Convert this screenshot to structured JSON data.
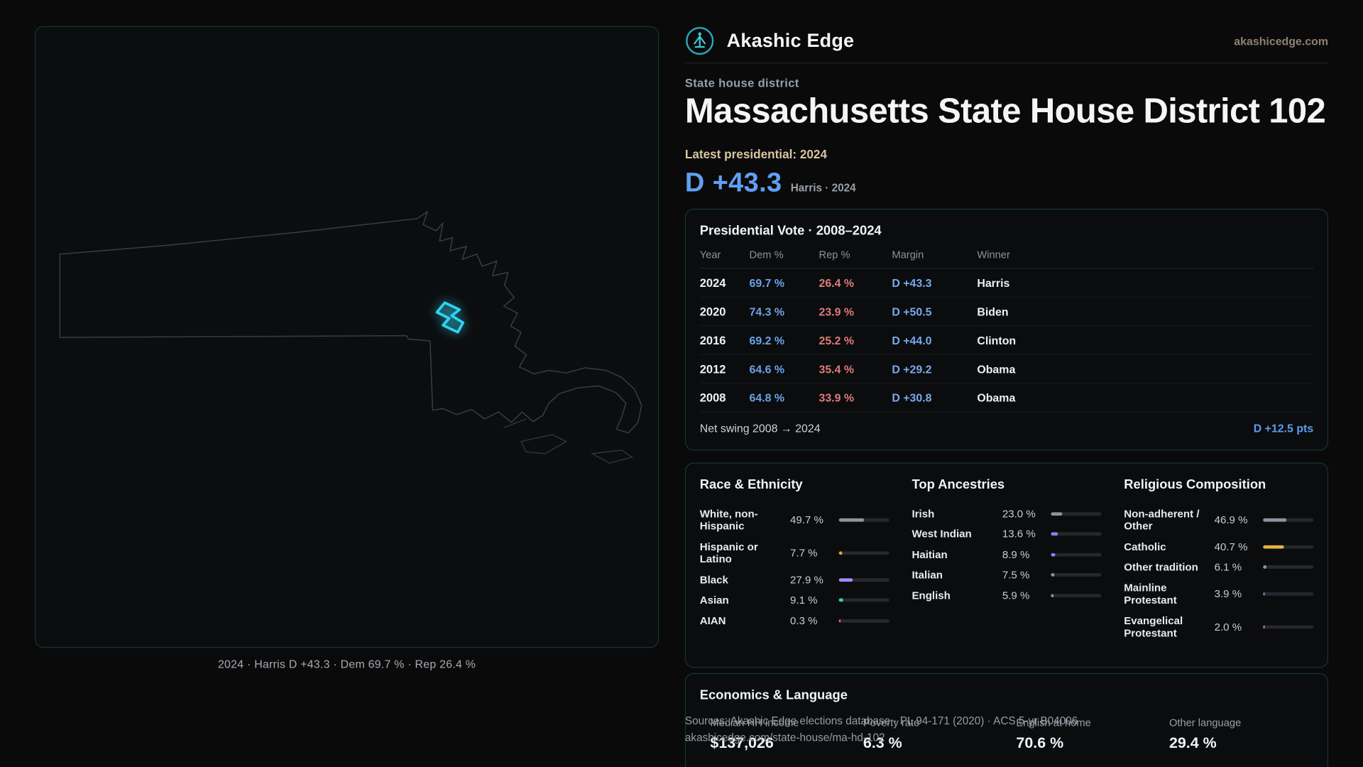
{
  "page": {
    "brand": "Akashic Edge",
    "domain": "akashicedge.com",
    "kicker": "State house district",
    "title": "Massachusetts State House District 102",
    "latest_label": "Latest presidential: 2024",
    "headline_margin": "D +43.3",
    "headline_sub": "Harris · 2024"
  },
  "map": {
    "caption": "2024 · Harris D +43.3 · Dem 69.7 % · Rep 26.4 %"
  },
  "presidential": {
    "title": "Presidential Vote · 2008–2024",
    "columns": [
      "Year",
      "Dem %",
      "Rep %",
      "Margin",
      "Winner"
    ],
    "rows": [
      {
        "year": "2024",
        "dem": "69.7 %",
        "rep": "26.4 %",
        "margin": "D +43.3",
        "winner": "Harris"
      },
      {
        "year": "2020",
        "dem": "74.3 %",
        "rep": "23.9 %",
        "margin": "D +50.5",
        "winner": "Biden"
      },
      {
        "year": "2016",
        "dem": "69.2 %",
        "rep": "25.2 %",
        "margin": "D +44.0",
        "winner": "Clinton"
      },
      {
        "year": "2012",
        "dem": "64.6 %",
        "rep": "35.4 %",
        "margin": "D +29.2",
        "winner": "Obama"
      },
      {
        "year": "2008",
        "dem": "64.8 %",
        "rep": "33.9 %",
        "margin": "D +30.8",
        "winner": "Obama"
      }
    ],
    "net_swing_label": "Net swing 2008 → 2024",
    "net_swing_value": "D +12.5 pts"
  },
  "demographics": {
    "race": {
      "title": "Race & Ethnicity",
      "rows": [
        {
          "label": "White, non-Hispanic",
          "value": "49.7 %",
          "pct": 49.7,
          "color": "#8f949c"
        },
        {
          "label": "Hispanic or Latino",
          "value": "7.7 %",
          "pct": 7.7,
          "color": "#e8a13c"
        },
        {
          "label": "Black",
          "value": "27.9 %",
          "pct": 27.9,
          "color": "#a78bfa"
        },
        {
          "label": "Asian",
          "value": "9.1 %",
          "pct": 9.1,
          "color": "#3ecfae"
        },
        {
          "label": "AIAN",
          "value": "0.3 %",
          "pct": 0.3,
          "color": "#e06c6c"
        }
      ]
    },
    "ancestries": {
      "title": "Top Ancestries",
      "rows": [
        {
          "label": "Irish",
          "value": "23.0 %",
          "pct": 23.0,
          "color": "#8f949c"
        },
        {
          "label": "West Indian",
          "value": "13.6 %",
          "pct": 13.6,
          "color": "#8b7ff0"
        },
        {
          "label": "Haitian",
          "value": "8.9 %",
          "pct": 8.9,
          "color": "#8b7ff0"
        },
        {
          "label": "Italian",
          "value": "7.5 %",
          "pct": 7.5,
          "color": "#8f949c"
        },
        {
          "label": "English",
          "value": "5.9 %",
          "pct": 5.9,
          "color": "#8f949c"
        }
      ]
    },
    "religion": {
      "title": "Religious Composition",
      "rows": [
        {
          "label": "Non-adherent / Other",
          "value": "46.9 %",
          "pct": 46.9,
          "color": "#8f949c"
        },
        {
          "label": "Catholic",
          "value": "40.7 %",
          "pct": 40.7,
          "color": "#e3b341"
        },
        {
          "label": "Other tradition",
          "value": "6.1 %",
          "pct": 6.1,
          "color": "#8f949c"
        },
        {
          "label": "Mainline Protestant",
          "value": "3.9 %",
          "pct": 3.9,
          "color": "#5b8ef0"
        },
        {
          "label": "Evangelical Protestant",
          "value": "2.0 %",
          "pct": 2.0,
          "color": "#d96b6b"
        }
      ]
    }
  },
  "economics": {
    "title": "Economics & Language",
    "stats": [
      {
        "label": "Median HH income",
        "value": "$137,026"
      },
      {
        "label": "Poverty rate",
        "value": "6.3 %"
      },
      {
        "label": "English at home",
        "value": "70.6 %"
      },
      {
        "label": "Other language",
        "value": "29.4 %"
      }
    ]
  },
  "footer": {
    "sources": "Sources: Akashic Edge elections database · PL 94-171 (2020) · ACS 5-yr B04006",
    "permalink": "akashicedge.com/state-house/ma-hd-102"
  },
  "colors": {
    "dem_blue": "#6ba3ea",
    "rep_red": "#e07a7a",
    "accent_cyan": "#2fd4f2",
    "gold": "#d8c69e"
  }
}
